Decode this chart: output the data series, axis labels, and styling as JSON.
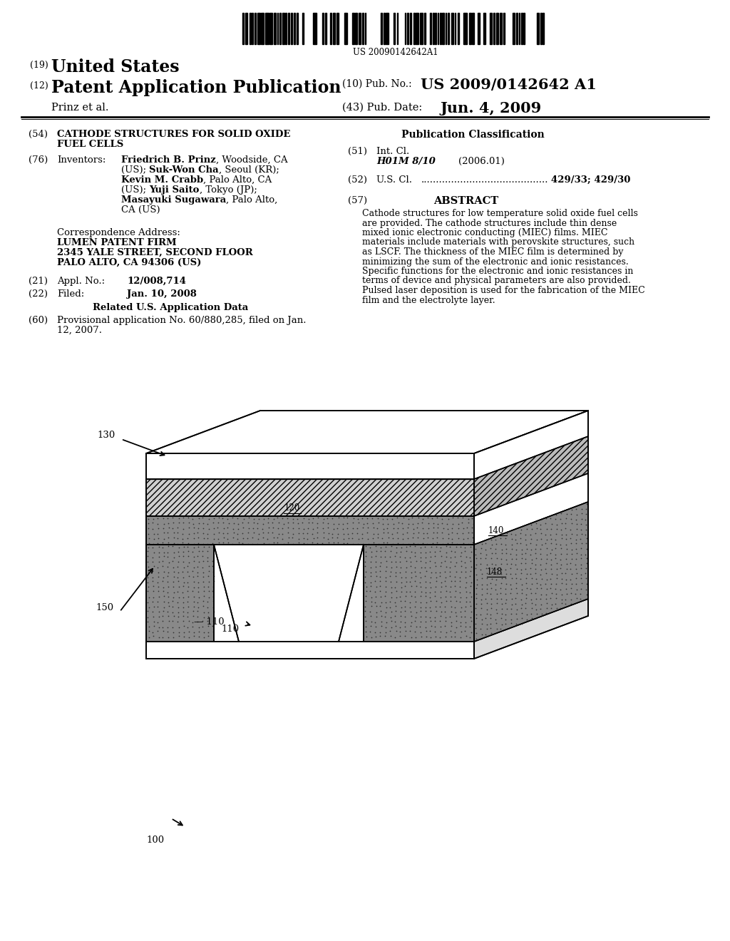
{
  "barcode_text": "US 20090142642A1",
  "pub_no": "US 2009/0142642 A1",
  "author": "Prinz et al.",
  "pub_date": "Jun. 4, 2009",
  "title54": "CATHODE STRUCTURES FOR SOLID OXIDE\nFUEL CELLS",
  "intcl_code": "H01M 8/10",
  "intcl_year": "(2006.01)",
  "uscl_dots": "..........................................",
  "uscl_value": "429/33; 429/30",
  "abstract_lines": [
    "Cathode structures for low temperature solid oxide fuel cells",
    "are provided. The cathode structures include thin dense",
    "mixed ionic electronic conducting (MIEC) films. MIEC",
    "materials include materials with perovskite structures, such",
    "as LSCF. The thickness of the MIEC film is determined by",
    "minimizing the sum of the electronic and ionic resistances.",
    "Specific functions for the electronic and ionic resistances in",
    "terms of device and physical parameters are also provided.",
    "Pulsed laser deposition is used for the fabrication of the MIEC",
    "film and the electrolyte layer."
  ],
  "bg_color": "#ffffff"
}
